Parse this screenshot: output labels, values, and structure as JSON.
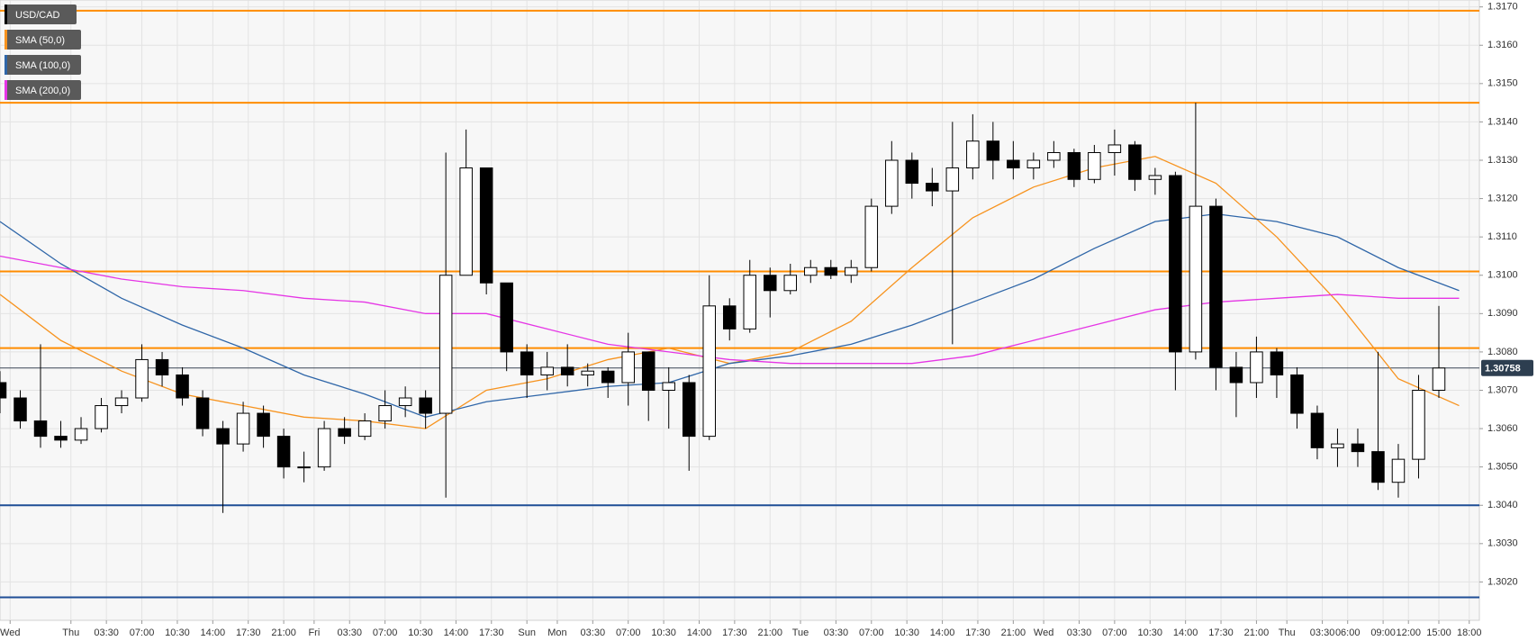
{
  "chart_data": {
    "type": "candlestick",
    "name": "USD/CAD",
    "name_color": "#000000",
    "up_color": "#ffffff",
    "down_color": "#000000",
    "grid": true,
    "ylim": [
      1.301,
      1.31718
    ],
    "yticks": [
      {
        "value": 1.302,
        "label": "1.3020"
      },
      {
        "value": 1.303,
        "label": "1.3030"
      },
      {
        "value": 1.304,
        "label": "1.3040"
      },
      {
        "value": 1.305,
        "label": "1.3050"
      },
      {
        "value": 1.306,
        "label": "1.3060"
      },
      {
        "value": 1.307,
        "label": "1.3070"
      },
      {
        "value": 1.308,
        "label": "1.3080"
      },
      {
        "value": 1.309,
        "label": "1.3090"
      },
      {
        "value": 1.31,
        "label": "1.3100"
      },
      {
        "value": 1.311,
        "label": "1.3110"
      },
      {
        "value": 1.312,
        "label": "1.3120"
      },
      {
        "value": 1.313,
        "label": "1.3130"
      },
      {
        "value": 1.314,
        "label": "1.3140"
      },
      {
        "value": 1.315,
        "label": "1.3150"
      },
      {
        "value": 1.316,
        "label": "1.3160"
      },
      {
        "value": 1.317,
        "label": "1.3170"
      }
    ],
    "xlim": [
      0,
      292
    ],
    "xticks": [
      {
        "value": 2,
        "label": "Wed"
      },
      {
        "value": 14,
        "label": "Thu"
      },
      {
        "value": 21,
        "label": "03:30"
      },
      {
        "value": 28,
        "label": "07:00"
      },
      {
        "value": 35,
        "label": "10:30"
      },
      {
        "value": 42,
        "label": "14:00"
      },
      {
        "value": 49,
        "label": "17:30"
      },
      {
        "value": 56,
        "label": "21:00"
      },
      {
        "value": 62,
        "label": "Fri"
      },
      {
        "value": 69,
        "label": "03:30"
      },
      {
        "value": 76,
        "label": "07:00"
      },
      {
        "value": 83,
        "label": "10:30"
      },
      {
        "value": 90,
        "label": "14:00"
      },
      {
        "value": 97,
        "label": "17:30"
      },
      {
        "value": 104,
        "label": "Sun"
      },
      {
        "value": 110,
        "label": "Mon"
      },
      {
        "value": 117,
        "label": "03:30"
      },
      {
        "value": 124,
        "label": "07:00"
      },
      {
        "value": 131,
        "label": "10:30"
      },
      {
        "value": 138,
        "label": "14:00"
      },
      {
        "value": 145,
        "label": "17:30"
      },
      {
        "value": 152,
        "label": "21:00"
      },
      {
        "value": 158,
        "label": "Tue"
      },
      {
        "value": 165,
        "label": "03:30"
      },
      {
        "value": 172,
        "label": "07:00"
      },
      {
        "value": 179,
        "label": "10:30"
      },
      {
        "value": 186,
        "label": "14:00"
      },
      {
        "value": 193,
        "label": "17:30"
      },
      {
        "value": 200,
        "label": "21:00"
      },
      {
        "value": 206,
        "label": "Wed"
      },
      {
        "value": 213,
        "label": "03:30"
      },
      {
        "value": 220,
        "label": "07:00"
      },
      {
        "value": 227,
        "label": "10:30"
      },
      {
        "value": 234,
        "label": "14:00"
      },
      {
        "value": 241,
        "label": "17:30"
      },
      {
        "value": 248,
        "label": "21:00"
      },
      {
        "value": 254,
        "label": "Thu"
      },
      {
        "value": 261,
        "label": "03:30"
      },
      {
        "value": 266,
        "label": "06:00"
      },
      {
        "value": 273,
        "label": "09:00"
      },
      {
        "value": 278,
        "label": "12:00"
      },
      {
        "value": 284,
        "label": "15:00"
      },
      {
        "value": 290,
        "label": "18:00"
      }
    ],
    "x": [
      0,
      4,
      8,
      12,
      16,
      20,
      24,
      28,
      32,
      36,
      40,
      44,
      48,
      52,
      56,
      60,
      64,
      68,
      72,
      76,
      80,
      84,
      88,
      92,
      96,
      100,
      104,
      108,
      112,
      116,
      120,
      124,
      128,
      132,
      136,
      140,
      144,
      148,
      152,
      156,
      160,
      164,
      168,
      172,
      176,
      180,
      184,
      188,
      192,
      196,
      200,
      204,
      208,
      212,
      216,
      220,
      224,
      228,
      232,
      236,
      240,
      244,
      248,
      252,
      256,
      260,
      264,
      268,
      272,
      276,
      280,
      284
    ],
    "open": [
      1.3072,
      1.3068,
      1.3062,
      1.3058,
      1.3057,
      1.306,
      1.3066,
      1.3068,
      1.3078,
      1.3074,
      1.3068,
      1.306,
      1.3056,
      1.3064,
      1.3058,
      1.305,
      1.305,
      1.306,
      1.3058,
      1.3062,
      1.3066,
      1.3068,
      1.3064,
      1.31,
      1.3128,
      1.3098,
      1.308,
      1.3074,
      1.3076,
      1.3074,
      1.3075,
      1.3072,
      1.308,
      1.307,
      1.3072,
      1.3058,
      1.3092,
      1.3086,
      1.31,
      1.3096,
      1.31,
      1.3102,
      1.31,
      1.3102,
      1.3118,
      1.313,
      1.3124,
      1.3122,
      1.3128,
      1.3135,
      1.313,
      1.3128,
      1.313,
      1.3132,
      1.3125,
      1.3132,
      1.3134,
      1.3125,
      1.3126,
      1.308,
      1.3118,
      1.3076,
      1.3072,
      1.308,
      1.3074,
      1.3064,
      1.3055,
      1.3056,
      1.3054,
      1.3046,
      1.3052,
      1.307
    ],
    "high": [
      1.3075,
      1.307,
      1.3082,
      1.3062,
      1.3063,
      1.3068,
      1.307,
      1.3082,
      1.308,
      1.3076,
      1.307,
      1.3062,
      1.3067,
      1.3066,
      1.306,
      1.3054,
      1.3062,
      1.3063,
      1.3064,
      1.307,
      1.3071,
      1.307,
      1.3132,
      1.3138,
      1.3128,
      1.3098,
      1.3082,
      1.308,
      1.3082,
      1.3077,
      1.3076,
      1.3085,
      1.308,
      1.3076,
      1.3074,
      1.31,
      1.3094,
      1.3104,
      1.3102,
      1.3103,
      1.3104,
      1.3104,
      1.3104,
      1.312,
      1.3135,
      1.3132,
      1.3128,
      1.314,
      1.3142,
      1.314,
      1.3135,
      1.3132,
      1.3135,
      1.3133,
      1.3134,
      1.3138,
      1.3135,
      1.3128,
      1.3127,
      1.3145,
      1.312,
      1.308,
      1.3084,
      1.3081,
      1.3076,
      1.3066,
      1.306,
      1.306,
      1.308,
      1.3056,
      1.3074,
      1.3092
    ],
    "low": [
      1.3064,
      1.306,
      1.3055,
      1.3055,
      1.3056,
      1.3059,
      1.3064,
      1.3067,
      1.3071,
      1.3066,
      1.3058,
      1.3038,
      1.3054,
      1.3055,
      1.3047,
      1.3046,
      1.3049,
      1.3056,
      1.3057,
      1.306,
      1.3063,
      1.306,
      1.3042,
      1.31,
      1.3095,
      1.3075,
      1.3068,
      1.307,
      1.3071,
      1.3071,
      1.3068,
      1.3066,
      1.3062,
      1.306,
      1.3049,
      1.3057,
      1.3083,
      1.3085,
      1.3089,
      1.3095,
      1.3098,
      1.3099,
      1.3098,
      1.3101,
      1.3116,
      1.312,
      1.3118,
      1.3082,
      1.3125,
      1.3125,
      1.3125,
      1.3125,
      1.3128,
      1.3123,
      1.3124,
      1.3126,
      1.3122,
      1.3121,
      1.307,
      1.3078,
      1.307,
      1.3063,
      1.3068,
      1.3068,
      1.306,
      1.3052,
      1.305,
      1.305,
      1.3044,
      1.3042,
      1.3047,
      1.3068
    ],
    "close": [
      1.3068,
      1.3062,
      1.3058,
      1.3057,
      1.306,
      1.3066,
      1.3068,
      1.3078,
      1.3074,
      1.3068,
      1.306,
      1.3056,
      1.3064,
      1.3058,
      1.305,
      1.305,
      1.306,
      1.3058,
      1.3062,
      1.3066,
      1.3068,
      1.3064,
      1.31,
      1.3128,
      1.3098,
      1.308,
      1.3074,
      1.3076,
      1.3074,
      1.3075,
      1.3072,
      1.308,
      1.307,
      1.3072,
      1.3058,
      1.3092,
      1.3086,
      1.31,
      1.3096,
      1.31,
      1.3102,
      1.31,
      1.3102,
      1.3118,
      1.313,
      1.3124,
      1.3122,
      1.3128,
      1.3135,
      1.313,
      1.3128,
      1.313,
      1.3132,
      1.3125,
      1.3132,
      1.3134,
      1.3125,
      1.3126,
      1.308,
      1.3118,
      1.3076,
      1.3072,
      1.308,
      1.3074,
      1.3064,
      1.3055,
      1.3056,
      1.3054,
      1.3046,
      1.3052,
      1.307,
      1.30758
    ],
    "series": [
      {
        "name": "SMA (50,0)",
        "color": "#f7931e",
        "x": [
          0,
          12,
          24,
          36,
          48,
          60,
          72,
          84,
          96,
          108,
          120,
          132,
          144,
          156,
          168,
          180,
          192,
          204,
          216,
          228,
          240,
          252,
          264,
          276,
          288
        ],
        "values": [
          1.3095,
          1.3083,
          1.3075,
          1.3069,
          1.3066,
          1.3063,
          1.3062,
          1.306,
          1.307,
          1.3073,
          1.3078,
          1.3081,
          1.3077,
          1.308,
          1.3088,
          1.3102,
          1.3115,
          1.3123,
          1.3128,
          1.3131,
          1.3124,
          1.311,
          1.3093,
          1.3073,
          1.3066
        ]
      },
      {
        "name": "SMA (100,0)",
        "color": "#2f66a8",
        "x": [
          0,
          12,
          24,
          36,
          48,
          60,
          72,
          84,
          96,
          108,
          120,
          132,
          144,
          156,
          168,
          180,
          192,
          204,
          216,
          228,
          240,
          252,
          264,
          276,
          288
        ],
        "values": [
          1.3114,
          1.3103,
          1.3094,
          1.3087,
          1.3081,
          1.3074,
          1.3069,
          1.3063,
          1.3067,
          1.3069,
          1.3071,
          1.3072,
          1.3077,
          1.3079,
          1.3082,
          1.3087,
          1.3093,
          1.3099,
          1.3107,
          1.3114,
          1.3116,
          1.3114,
          1.311,
          1.3102,
          1.3096
        ]
      },
      {
        "name": "SMA (200,0)",
        "color": "#e535e5",
        "x": [
          0,
          12,
          24,
          36,
          48,
          60,
          72,
          84,
          96,
          108,
          120,
          132,
          144,
          156,
          168,
          180,
          192,
          204,
          216,
          228,
          240,
          252,
          264,
          276,
          288
        ],
        "values": [
          1.3105,
          1.3102,
          1.3099,
          1.3097,
          1.3096,
          1.3094,
          1.3093,
          1.309,
          1.309,
          1.3086,
          1.3082,
          1.308,
          1.3078,
          1.3077,
          1.3077,
          1.3077,
          1.3079,
          1.3083,
          1.3087,
          1.3091,
          1.3093,
          1.3094,
          1.3095,
          1.3094,
          1.3094
        ]
      }
    ],
    "levels": [
      {
        "value": 1.3169,
        "color": "#ff8c00"
      },
      {
        "value": 1.3145,
        "color": "#ff8c00"
      },
      {
        "value": 1.3101,
        "color": "#ff8c00"
      },
      {
        "value": 1.3081,
        "color": "#ff8c00"
      },
      {
        "value": 1.304,
        "color": "#1f4e96"
      },
      {
        "value": 1.3016,
        "color": "#1f4e96"
      }
    ],
    "last_price": 1.30758
  }
}
